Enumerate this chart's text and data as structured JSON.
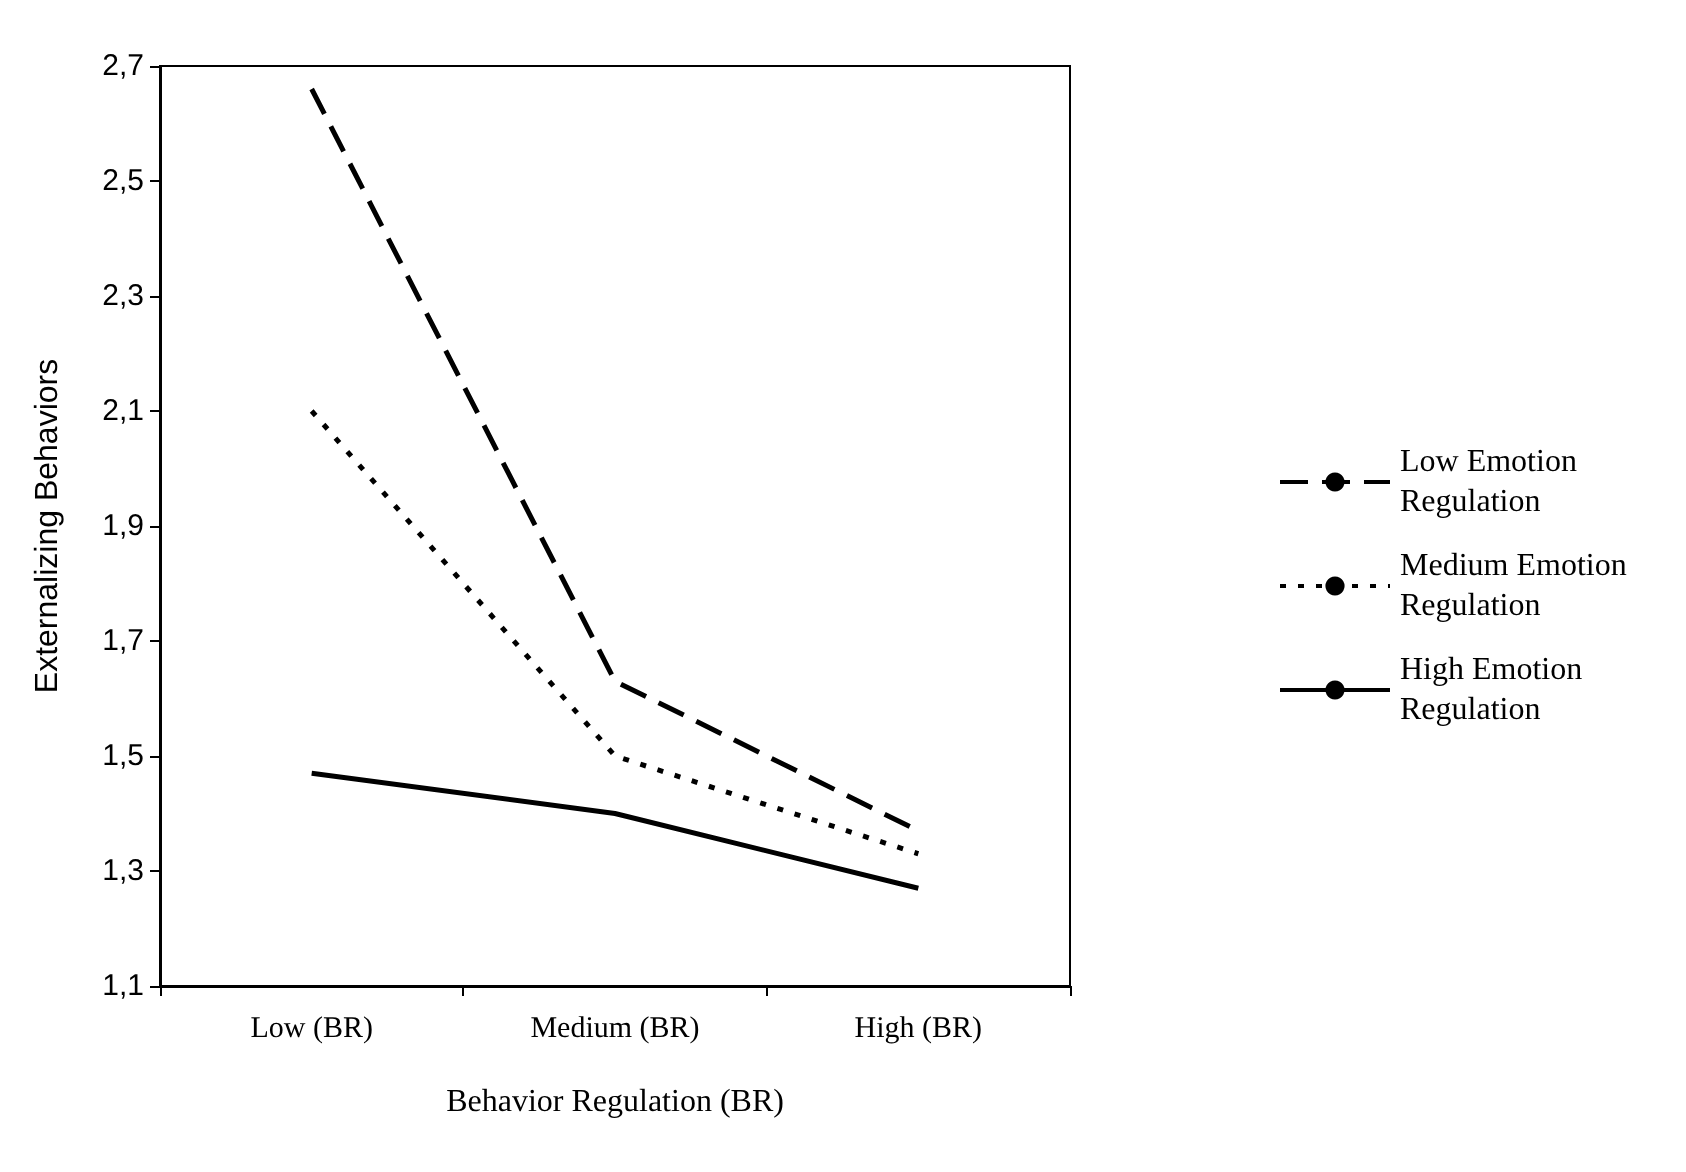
{
  "chart_data": {
    "type": "line",
    "xlabel": "Behavior Regulation (BR)",
    "ylabel": "Externalizing Behaviors",
    "categories": [
      "Low (BR)",
      "Medium (BR)",
      "High (BR)"
    ],
    "series": [
      {
        "name": "Low Emotion Regulation",
        "color": "#000000",
        "line_style": "dashed",
        "values": [
          2.66,
          1.63,
          1.37
        ]
      },
      {
        "name": "Medium Emotion Regulation",
        "color": "#000000",
        "line_style": "dotted",
        "values": [
          2.1,
          1.5,
          1.33
        ]
      },
      {
        "name": "High Emotion Regulation",
        "color": "#000000",
        "line_style": "solid",
        "values": [
          1.47,
          1.4,
          1.27
        ]
      }
    ],
    "ylim": [
      1.1,
      2.7
    ],
    "yticks": [
      {
        "value": 1.1,
        "label": "1,1"
      },
      {
        "value": 1.3,
        "label": "1,3"
      },
      {
        "value": 1.5,
        "label": "1,5"
      },
      {
        "value": 1.7,
        "label": "1,7"
      },
      {
        "value": 1.9,
        "label": "1,9"
      },
      {
        "value": 2.1,
        "label": "2,1"
      },
      {
        "value": 2.3,
        "label": "2,3"
      },
      {
        "value": 2.5,
        "label": "2,5"
      },
      {
        "value": 2.7,
        "label": "2,7"
      }
    ],
    "grid": false,
    "legend": "right",
    "marker": "none"
  }
}
